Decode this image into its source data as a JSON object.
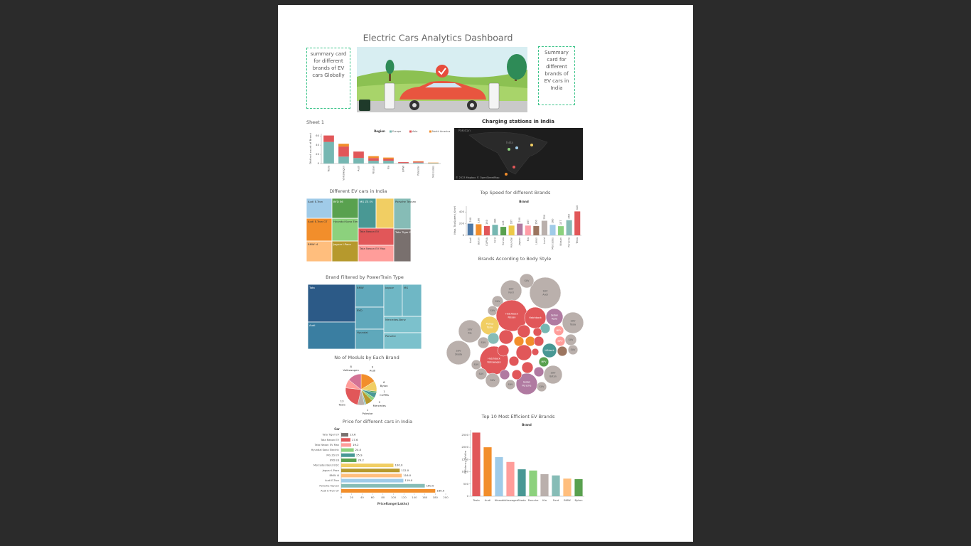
{
  "header": {
    "title": "Electric Cars Analytics Dashboard",
    "card_global": "summary card for different brands of EV cars Globally",
    "card_india": "Summary card for different brands of EV cars in India"
  },
  "map": {
    "title": "Charging stations in India",
    "labels": [
      "Pakistan",
      "India"
    ],
    "credit": "© 2023 Mapbox © OpenStreetMap"
  },
  "chart_data": [
    {
      "type": "bar",
      "title": "Sheet 1",
      "header": "Region",
      "y_label": "Distinct count of Brand",
      "categories": [
        "Tesla",
        "Volkswagen",
        "Audi",
        "Nissan",
        "Kia",
        "BMW",
        "Polestar",
        "Mercedes"
      ],
      "series": [
        {
          "name": "Europe",
          "color": "#76b7b2",
          "values": [
            47,
            15,
            12,
            6,
            6,
            1,
            2,
            1
          ]
        },
        {
          "name": "Asia",
          "color": "#e15759",
          "values": [
            14,
            22,
            14,
            6,
            4,
            2,
            2,
            0
          ]
        },
        {
          "name": "North America",
          "color": "#f28e2b",
          "values": [
            0,
            6,
            0,
            4,
            3,
            0,
            1,
            1
          ]
        }
      ],
      "ylim": [
        0,
        65
      ],
      "yticks": [
        0,
        20,
        40,
        60
      ]
    },
    {
      "type": "treemap",
      "title": "Different EV cars in India",
      "items": [
        {
          "name": "Audi E-Tron",
          "value": 101,
          "color": "#a0cbe8"
        },
        {
          "name": "Audi E-Tron GT",
          "value": 115,
          "color": "#f28e2b"
        },
        {
          "name": "BMW i4",
          "value": 104,
          "color": "#ffbe7d"
        },
        {
          "name": "BYD E6",
          "value": 104,
          "color": "#59a14f"
        },
        {
          "name": "Hyundai Kona Electric",
          "value": 118,
          "color": "#8cd17d"
        },
        {
          "name": "Jaguar I-Pace",
          "value": 107,
          "color": "#b6992d"
        },
        {
          "name": "MG ZS EV",
          "value": 105,
          "color": "#499894"
        },
        {
          "name": null,
          "value": 105,
          "color": "#f1ce63"
        },
        {
          "name": "Tata Nexon EV",
          "value": 120,
          "color": "#e15759"
        },
        {
          "name": "Tata Nexon EV Max",
          "value": 115,
          "color": "#ff9d9a"
        },
        {
          "name": "Porsche Taycan",
          "value": 103,
          "color": "#86bcb6"
        },
        {
          "name": "Tata Tigor EV",
          "value": 110,
          "color": "#79706e"
        }
      ]
    },
    {
      "type": "bar",
      "title": "Top Speed for different Brands",
      "header": "Brand",
      "y_label": "Max. TopSpeed_KmH",
      "categories": [
        "Audi",
        "Byton",
        "CUPRA",
        "Ford",
        "Honda",
        "Hyundai",
        "Jaguar",
        "Kia",
        "Lexus",
        "Lucid",
        "Mercedes",
        "Nissan",
        "Porsche",
        "Tesla"
      ],
      "values": [
        200,
        190,
        160,
        180,
        145,
        167,
        200,
        167,
        160,
        250,
        180,
        157,
        260,
        410
      ],
      "colors": [
        "#4e79a7",
        "#f28e2b",
        "#e15759",
        "#76b7b2",
        "#59a14f",
        "#edc948",
        "#b07aa1",
        "#ff9da7",
        "#9c755f",
        "#bab0ac",
        "#a0cbe8",
        "#8cd17d",
        "#86bcb6",
        "#e15759"
      ],
      "ylim": [
        0,
        500
      ],
      "yticks": [
        0,
        200,
        400
      ]
    },
    {
      "type": "treemap",
      "title": "Brand Filtered by PowerTrain Type",
      "items": [
        {
          "name": "Tata",
          "value": 355,
          "color": "#2c5a87"
        },
        {
          "name": "Audi",
          "value": 255,
          "color": "#3a7ea1"
        },
        {
          "name": "BMW",
          "value": 128,
          "color": "#5fa8bb"
        },
        {
          "name": "BYD",
          "value": 124,
          "color": "#5fa8bb"
        },
        {
          "name": "Hyundai",
          "value": 112,
          "color": "#5fa8bb"
        },
        {
          "name": "Jaguar",
          "value": 117,
          "color": "#6fb7c5"
        },
        {
          "name": "MG",
          "value": 122,
          "color": "#6fb7c5"
        },
        {
          "name": "Mercedes-Benz",
          "value": 122,
          "color": "#7cc1cc"
        },
        {
          "name": "Porsche",
          "value": 122,
          "color": "#7cc1cc"
        }
      ]
    },
    {
      "type": "bubble",
      "title": "Brands According to Body Style",
      "items": [
        {
          "body": "SUV",
          "brand": "Audi",
          "value": 121,
          "color": "#bab0ac"
        },
        {
          "body": "SUV",
          "brand": "Ford",
          "value": 56,
          "color": "#bab0ac"
        },
        {
          "body": "SUV",
          "value": 25,
          "color": "#bab0ac"
        },
        {
          "body": "SUV",
          "value": 16,
          "color": "#bab0ac"
        },
        {
          "body": "SUV",
          "value": 12,
          "color": "#bab0ac"
        },
        {
          "body": "Hatchback",
          "brand": "Nissan",
          "value": 121,
          "color": "#e15759"
        },
        {
          "body": "Hatchback",
          "value": 56,
          "color": "#e15759"
        },
        {
          "body": "Sedan",
          "brand": "Tesla",
          "value": 36,
          "color": "#b07aa1"
        },
        {
          "body": "SUV",
          "brand": "Tesla",
          "value": 56,
          "color": "#bab0ac"
        },
        {
          "body": "Pickup",
          "brand": "Tesla",
          "value": 42,
          "color": "#f1ce63"
        },
        {
          "body": "SUV",
          "brand": "Kia",
          "value": 64,
          "color": "#bab0ac"
        },
        {
          "body": "SUV",
          "brand": "Skoda",
          "value": 72,
          "color": "#bab0ac"
        },
        {
          "body": "Hatchback",
          "brand": "Volkswagen",
          "value": 100,
          "color": "#e15759"
        },
        {
          "body": "Sedan",
          "brand": "Porsche",
          "value": 56,
          "color": "#b07aa1"
        },
        {
          "body": "SUV",
          "brand": "Byton",
          "value": 42,
          "color": "#bab0ac"
        },
        {
          "body": "Liftback",
          "value": 25,
          "color": "#499894"
        },
        {
          "body": "MPV",
          "value": 12,
          "color": "#ff9d9a"
        },
        {
          "body": "MPV",
          "value": 12,
          "color": "#ff9d9a"
        },
        {
          "body": "SUV",
          "value": 16,
          "color": "#bab0ac"
        },
        {
          "body": "SUV",
          "value": 12,
          "color": "#bab0ac"
        },
        {
          "body": "SUV",
          "value": 25,
          "color": "#bab0ac"
        },
        {
          "body": "SUV",
          "value": 16,
          "color": "#bab0ac"
        },
        {
          "body": "SUV",
          "value": 12,
          "color": "#bab0ac"
        },
        {
          "body": "SUV",
          "value": 16,
          "color": "#bab0ac"
        },
        {
          "body": "MPV",
          "value": 12,
          "color": "#59a14f"
        },
        {
          "body": "SUV",
          "value": 12,
          "color": "#bab0ac"
        },
        {
          "body": "SUV",
          "value": 12,
          "color": "#bab0ac"
        },
        {
          "body": null,
          "value": 25,
          "color": "#e15759"
        },
        {
          "body": null,
          "value": 20,
          "color": "#e15759"
        },
        {
          "body": null,
          "value": 30,
          "color": "#e15759"
        },
        {
          "body": null,
          "value": 12,
          "color": "#f28e2b"
        },
        {
          "body": null,
          "value": 12,
          "color": "#f28e2b"
        },
        {
          "body": null,
          "value": 16,
          "color": "#86bcb6"
        },
        {
          "body": null,
          "value": 12,
          "color": "#e15759"
        },
        {
          "body": null,
          "value": 12,
          "color": "#76b7b2"
        },
        {
          "body": null,
          "value": 9,
          "color": "#e15759"
        },
        {
          "body": null,
          "value": 12,
          "color": "#e15759"
        },
        {
          "body": null,
          "value": 16,
          "color": "#e15759"
        },
        {
          "body": null,
          "value": 6,
          "color": "#e15759"
        },
        {
          "body": null,
          "value": 16,
          "color": "#e15759"
        },
        {
          "body": null,
          "value": 12,
          "color": "#b07aa1"
        },
        {
          "body": null,
          "value": 12,
          "color": "#e15759"
        },
        {
          "body": null,
          "value": 12,
          "color": "#b07aa1"
        },
        {
          "body": null,
          "value": 12,
          "color": "#9c755f"
        }
      ]
    },
    {
      "type": "pie",
      "title": "No of Moduls by Each Brand",
      "categories": [
        "Audi",
        "Byton",
        "CUPRA",
        null,
        "Mercedes",
        null,
        "Polestar",
        null,
        "Tesla",
        null,
        "Volkswagen"
      ],
      "values": [
        9,
        6,
        1,
        3,
        2,
        4,
        1,
        4,
        13,
        5,
        8
      ],
      "colors": [
        "#f28e2b",
        "#f1ce63",
        "#59a14f",
        "#499894",
        "#8cd17d",
        "#b6992d",
        "#86bcb6",
        "#bab0ac",
        "#e15759",
        "#ff9d9a",
        "#d37295"
      ]
    },
    {
      "type": "bar",
      "orientation": "horizontal",
      "title": "Price for different cars  in India",
      "header": "Car",
      "x_label": "PriceRange(Lakhs)",
      "categories": [
        "Tata Tigor EV",
        "Tata Nexon EV",
        "Tata Nexon EV Max",
        "Hyundai Kona Electric",
        "MG ZS EV",
        "BYD E6",
        "Mercedes Benz EQC",
        "Jaguar I-Pace",
        "BMW i4",
        "Audi E-Tron",
        "Porsche Taycan",
        "Audi E-Tron GT"
      ],
      "values": [
        13.6,
        17.6,
        19.2,
        24,
        25.9,
        29.2,
        100,
        112,
        116,
        119,
        160,
        180
      ],
      "value_labels": [
        "13.6",
        "17.6",
        "19.2",
        "24.0",
        "25.9",
        "29.2",
        "100.0",
        "112.0",
        "116.0",
        "119.0",
        "160.0",
        "180.0"
      ],
      "colors": [
        "#79706e",
        "#e15759",
        "#ff9d9a",
        "#8cd17d",
        "#499894",
        "#59a14f",
        "#f1ce63",
        "#b6992d",
        "#ffbe7d",
        "#a0cbe8",
        "#86bcb6",
        "#f28e2b"
      ],
      "xlim": [
        0,
        200
      ],
      "xticks": [
        0,
        20,
        40,
        60,
        80,
        100,
        120,
        140,
        160,
        180,
        200
      ]
    },
    {
      "type": "bar",
      "title": "Top 10 Most Efficient EV Brands",
      "header": "Brand",
      "y_label": "Efficiency_WhKm",
      "categories": [
        "Tesla",
        "Audi",
        "Nissan",
        "Volkswagen",
        "Skoda",
        "Porsche",
        "Kia",
        "Ford",
        "BMW",
        "Byton"
      ],
      "values": [
        2600,
        2000,
        1600,
        1400,
        1100,
        1050,
        900,
        850,
        720,
        700
      ],
      "colors": [
        "#e15759",
        "#f28e2b",
        "#a0cbe8",
        "#ff9d9a",
        "#499894",
        "#8cd17d",
        "#bab0ac",
        "#86bcb6",
        "#ffbe7d",
        "#59a14f"
      ],
      "ylim": [
        0,
        2700
      ],
      "yticks": [
        0,
        500,
        1000,
        1500,
        2000,
        2500
      ]
    }
  ]
}
